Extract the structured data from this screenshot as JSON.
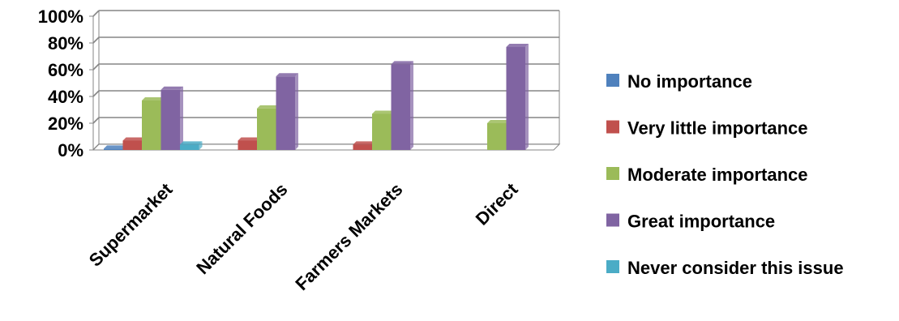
{
  "chart_data": {
    "type": "bar",
    "title": "",
    "xlabel": "",
    "ylabel": "",
    "categories": [
      "Supermarket",
      "Natural Foods",
      "Farmers Markets",
      "Direct"
    ],
    "ylim": [
      0,
      100
    ],
    "yticks": [
      "0%",
      "20%",
      "40%",
      "60%",
      "80%",
      "100%"
    ],
    "grid": true,
    "legend_position": "right",
    "series": [
      {
        "name": "No importance",
        "color": "#4F81BD",
        "values": [
          1,
          0,
          0,
          0
        ]
      },
      {
        "name": "Very little importance",
        "color": "#C0504D",
        "values": [
          7,
          7,
          4,
          0
        ]
      },
      {
        "name": "Moderate importance",
        "color": "#9BBB59",
        "values": [
          37,
          31,
          27,
          20
        ]
      },
      {
        "name": "Great importance",
        "color": "#8064A2",
        "values": [
          45,
          55,
          64,
          77
        ]
      },
      {
        "name": "Never consider this issue",
        "color": "#4BACC6",
        "values": [
          4,
          0,
          0,
          0
        ]
      }
    ]
  }
}
